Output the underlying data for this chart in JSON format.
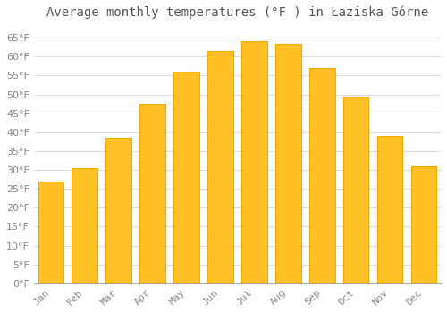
{
  "title": "Average monthly temperatures (°F ) in Łaziska Górne",
  "months": [
    "Jan",
    "Feb",
    "Mar",
    "Apr",
    "May",
    "Jun",
    "Jul",
    "Aug",
    "Sep",
    "Oct",
    "Nov",
    "Dec"
  ],
  "values": [
    27.0,
    30.5,
    38.5,
    47.5,
    56.0,
    61.5,
    64.0,
    63.5,
    57.0,
    49.5,
    39.0,
    31.0
  ],
  "bar_color": "#FFC125",
  "bar_edge_color": "#F5A800",
  "background_color": "#FFFFFF",
  "grid_color": "#DDDDDD",
  "ylim": [
    0,
    68
  ],
  "yticks": [
    0,
    5,
    10,
    15,
    20,
    25,
    30,
    35,
    40,
    45,
    50,
    55,
    60,
    65
  ],
  "title_fontsize": 10,
  "tick_fontsize": 8,
  "title_color": "#555555",
  "tick_color": "#888888",
  "bar_width": 0.75
}
